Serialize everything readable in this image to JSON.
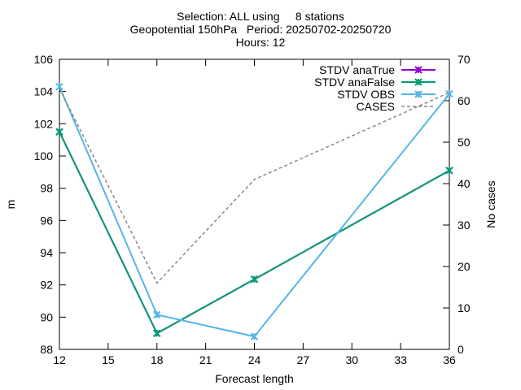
{
  "chart_data": {
    "type": "line",
    "title_lines": [
      "Selection: ALL using     8 stations",
      "Geopotential 150hPa   Period: 20250702-20250720",
      "Hours: 12"
    ],
    "xlabel": "Forecast length",
    "ylabel": "m",
    "y2label": "No cases",
    "xlim": [
      12,
      36
    ],
    "ylim": [
      88,
      106
    ],
    "y2lim": [
      0,
      70
    ],
    "x_ticks": [
      12,
      15,
      18,
      21,
      24,
      27,
      30,
      33,
      36
    ],
    "y_ticks": [
      88,
      90,
      92,
      94,
      96,
      98,
      100,
      102,
      104,
      106
    ],
    "y2_ticks": [
      0,
      10,
      20,
      30,
      40,
      50,
      60,
      70
    ],
    "grid": false,
    "legend_position": "top-right",
    "series": [
      {
        "name": "STDV anaTrue",
        "axis": "y",
        "style": "solid",
        "marker": "x",
        "color": "#9400d3",
        "x": [
          12,
          18,
          24,
          36
        ],
        "values": [
          101.5,
          89.0,
          92.35,
          99.1
        ]
      },
      {
        "name": "STDV anaFalse",
        "axis": "y",
        "style": "solid",
        "marker": "x",
        "color": "#009e73",
        "x": [
          12,
          18,
          24,
          36
        ],
        "values": [
          101.5,
          89.0,
          92.35,
          99.1
        ]
      },
      {
        "name": "STDV OBS",
        "axis": "y",
        "style": "solid",
        "marker": "x",
        "color": "#56b4e9",
        "x": [
          12,
          18,
          24,
          36
        ],
        "values": [
          104.3,
          90.15,
          88.8,
          103.85
        ]
      },
      {
        "name": "CASES",
        "axis": "y2",
        "style": "dashed",
        "marker": "none",
        "color": "#888888",
        "x": [
          12,
          18,
          24,
          36
        ],
        "values": [
          63,
          16,
          41,
          62
        ]
      }
    ]
  }
}
